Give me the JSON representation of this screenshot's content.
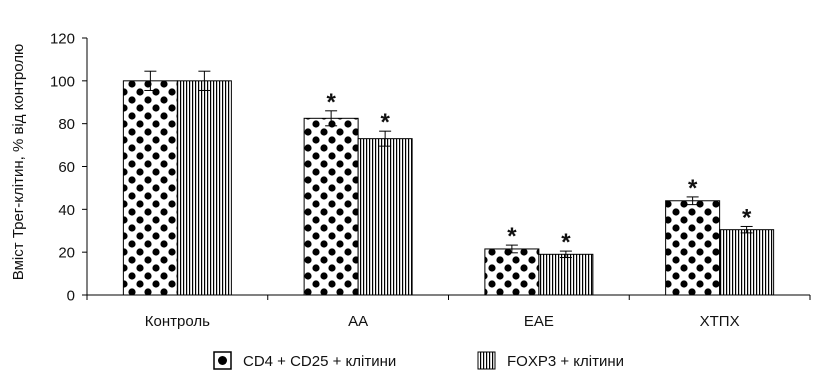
{
  "chart_data": {
    "type": "bar",
    "ylabel": "Вміст Трег-клітин, % від контролю",
    "ylim": [
      0,
      120
    ],
    "yticks": [
      0,
      20,
      40,
      60,
      80,
      100,
      120
    ],
    "categories": [
      "Контроль",
      "АА",
      "ЕАЕ",
      "ХТПХ"
    ],
    "series": [
      {
        "name": "CD4 + CD25 + клітини",
        "pattern": "dots",
        "values": [
          100,
          82.5,
          21.5,
          44
        ],
        "errors": [
          4.5,
          3.5,
          1.8,
          1.8
        ],
        "significant": [
          false,
          true,
          true,
          true
        ]
      },
      {
        "name": "FOXP3 + клітини",
        "pattern": "vertical-lines",
        "values": [
          100,
          73,
          19,
          30.5
        ],
        "errors": [
          4.5,
          3.5,
          1.5,
          1.5
        ],
        "significant": [
          false,
          true,
          true,
          true
        ]
      }
    ],
    "significance_marker": "*",
    "legend_position": "bottom",
    "grid": false
  }
}
